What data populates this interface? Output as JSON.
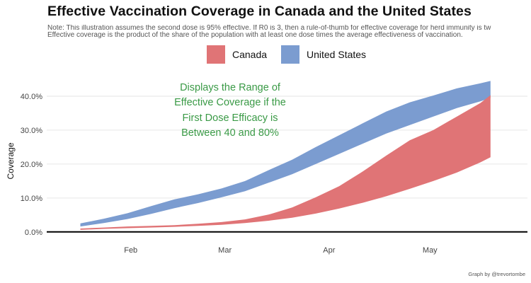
{
  "chart_data": {
    "type": "area",
    "title": "Effective Vaccination Coverage in Canada and the United States",
    "subtitle": [
      "Note: This illustration assumes the second dose is 95% effective. If R0 is 3, then a rule-of-thumb for effective coverage for herd immunity is tw",
      "Effective coverage is the product of the share of the population with at least one dose times the average effectiveness of vaccination."
    ],
    "xlabel": "",
    "ylabel": "Coverage",
    "x_tick_labels": [
      "Feb",
      "Mar",
      "Apr",
      "May"
    ],
    "x_tick_dates": [
      "2021-02-01",
      "2021-03-01",
      "2021-04-01",
      "2021-05-01"
    ],
    "y_tick_labels": [
      "0.0%",
      "10.0%",
      "20.0%",
      "30.0%",
      "40.0%"
    ],
    "y_tick_values": [
      0,
      10,
      20,
      30,
      40
    ],
    "xlim": [
      "2021-01-07",
      "2021-05-30"
    ],
    "ylim": [
      -1.5,
      47.5
    ],
    "grid": true,
    "legend_position": "top",
    "annotation": [
      "Displays the Range of",
      "Effective Coverage if the",
      "First Dose Efficacy is",
      "Between 40 and 80%"
    ],
    "annotation_color": "#3a9a46",
    "caption": "Graph by @trevortombe",
    "series": [
      {
        "name": "United States",
        "color": "#7b9cd0",
        "x": [
          "2021-01-17",
          "2021-01-24",
          "2021-01-31",
          "2021-02-07",
          "2021-02-14",
          "2021-02-21",
          "2021-02-28",
          "2021-03-07",
          "2021-03-14",
          "2021-03-21",
          "2021-03-28",
          "2021-04-04",
          "2021-04-11",
          "2021-04-18",
          "2021-04-25",
          "2021-05-02",
          "2021-05-09",
          "2021-05-16",
          "2021-05-19"
        ],
        "lower": [
          1.6,
          2.6,
          3.8,
          5.3,
          7.0,
          8.5,
          10.2,
          12.0,
          14.5,
          17.0,
          20.0,
          23.0,
          26.0,
          29.0,
          31.5,
          34.0,
          36.5,
          38.5,
          39.5
        ],
        "upper": [
          2.5,
          3.9,
          5.5,
          7.6,
          9.6,
          11.1,
          12.8,
          15.0,
          18.2,
          21.3,
          25.0,
          28.5,
          32.0,
          35.5,
          38.2,
          40.2,
          42.3,
          43.8,
          44.5
        ]
      },
      {
        "name": "Canada",
        "color": "#e07476",
        "x": [
          "2021-01-17",
          "2021-01-24",
          "2021-01-31",
          "2021-02-07",
          "2021-02-14",
          "2021-02-21",
          "2021-02-28",
          "2021-03-07",
          "2021-03-14",
          "2021-03-21",
          "2021-03-28",
          "2021-04-04",
          "2021-04-11",
          "2021-04-18",
          "2021-04-25",
          "2021-05-02",
          "2021-05-09",
          "2021-05-16",
          "2021-05-19"
        ],
        "lower": [
          0.6,
          0.9,
          1.1,
          1.3,
          1.5,
          1.8,
          2.1,
          2.6,
          3.3,
          4.2,
          5.4,
          6.9,
          8.6,
          10.5,
          12.7,
          15.0,
          17.5,
          20.5,
          22.0
        ],
        "upper": [
          1.0,
          1.3,
          1.6,
          1.8,
          2.0,
          2.4,
          2.9,
          3.7,
          5.1,
          7.2,
          10.2,
          13.5,
          17.8,
          22.5,
          27.0,
          30.0,
          34.0,
          38.0,
          40.3
        ]
      }
    ]
  }
}
